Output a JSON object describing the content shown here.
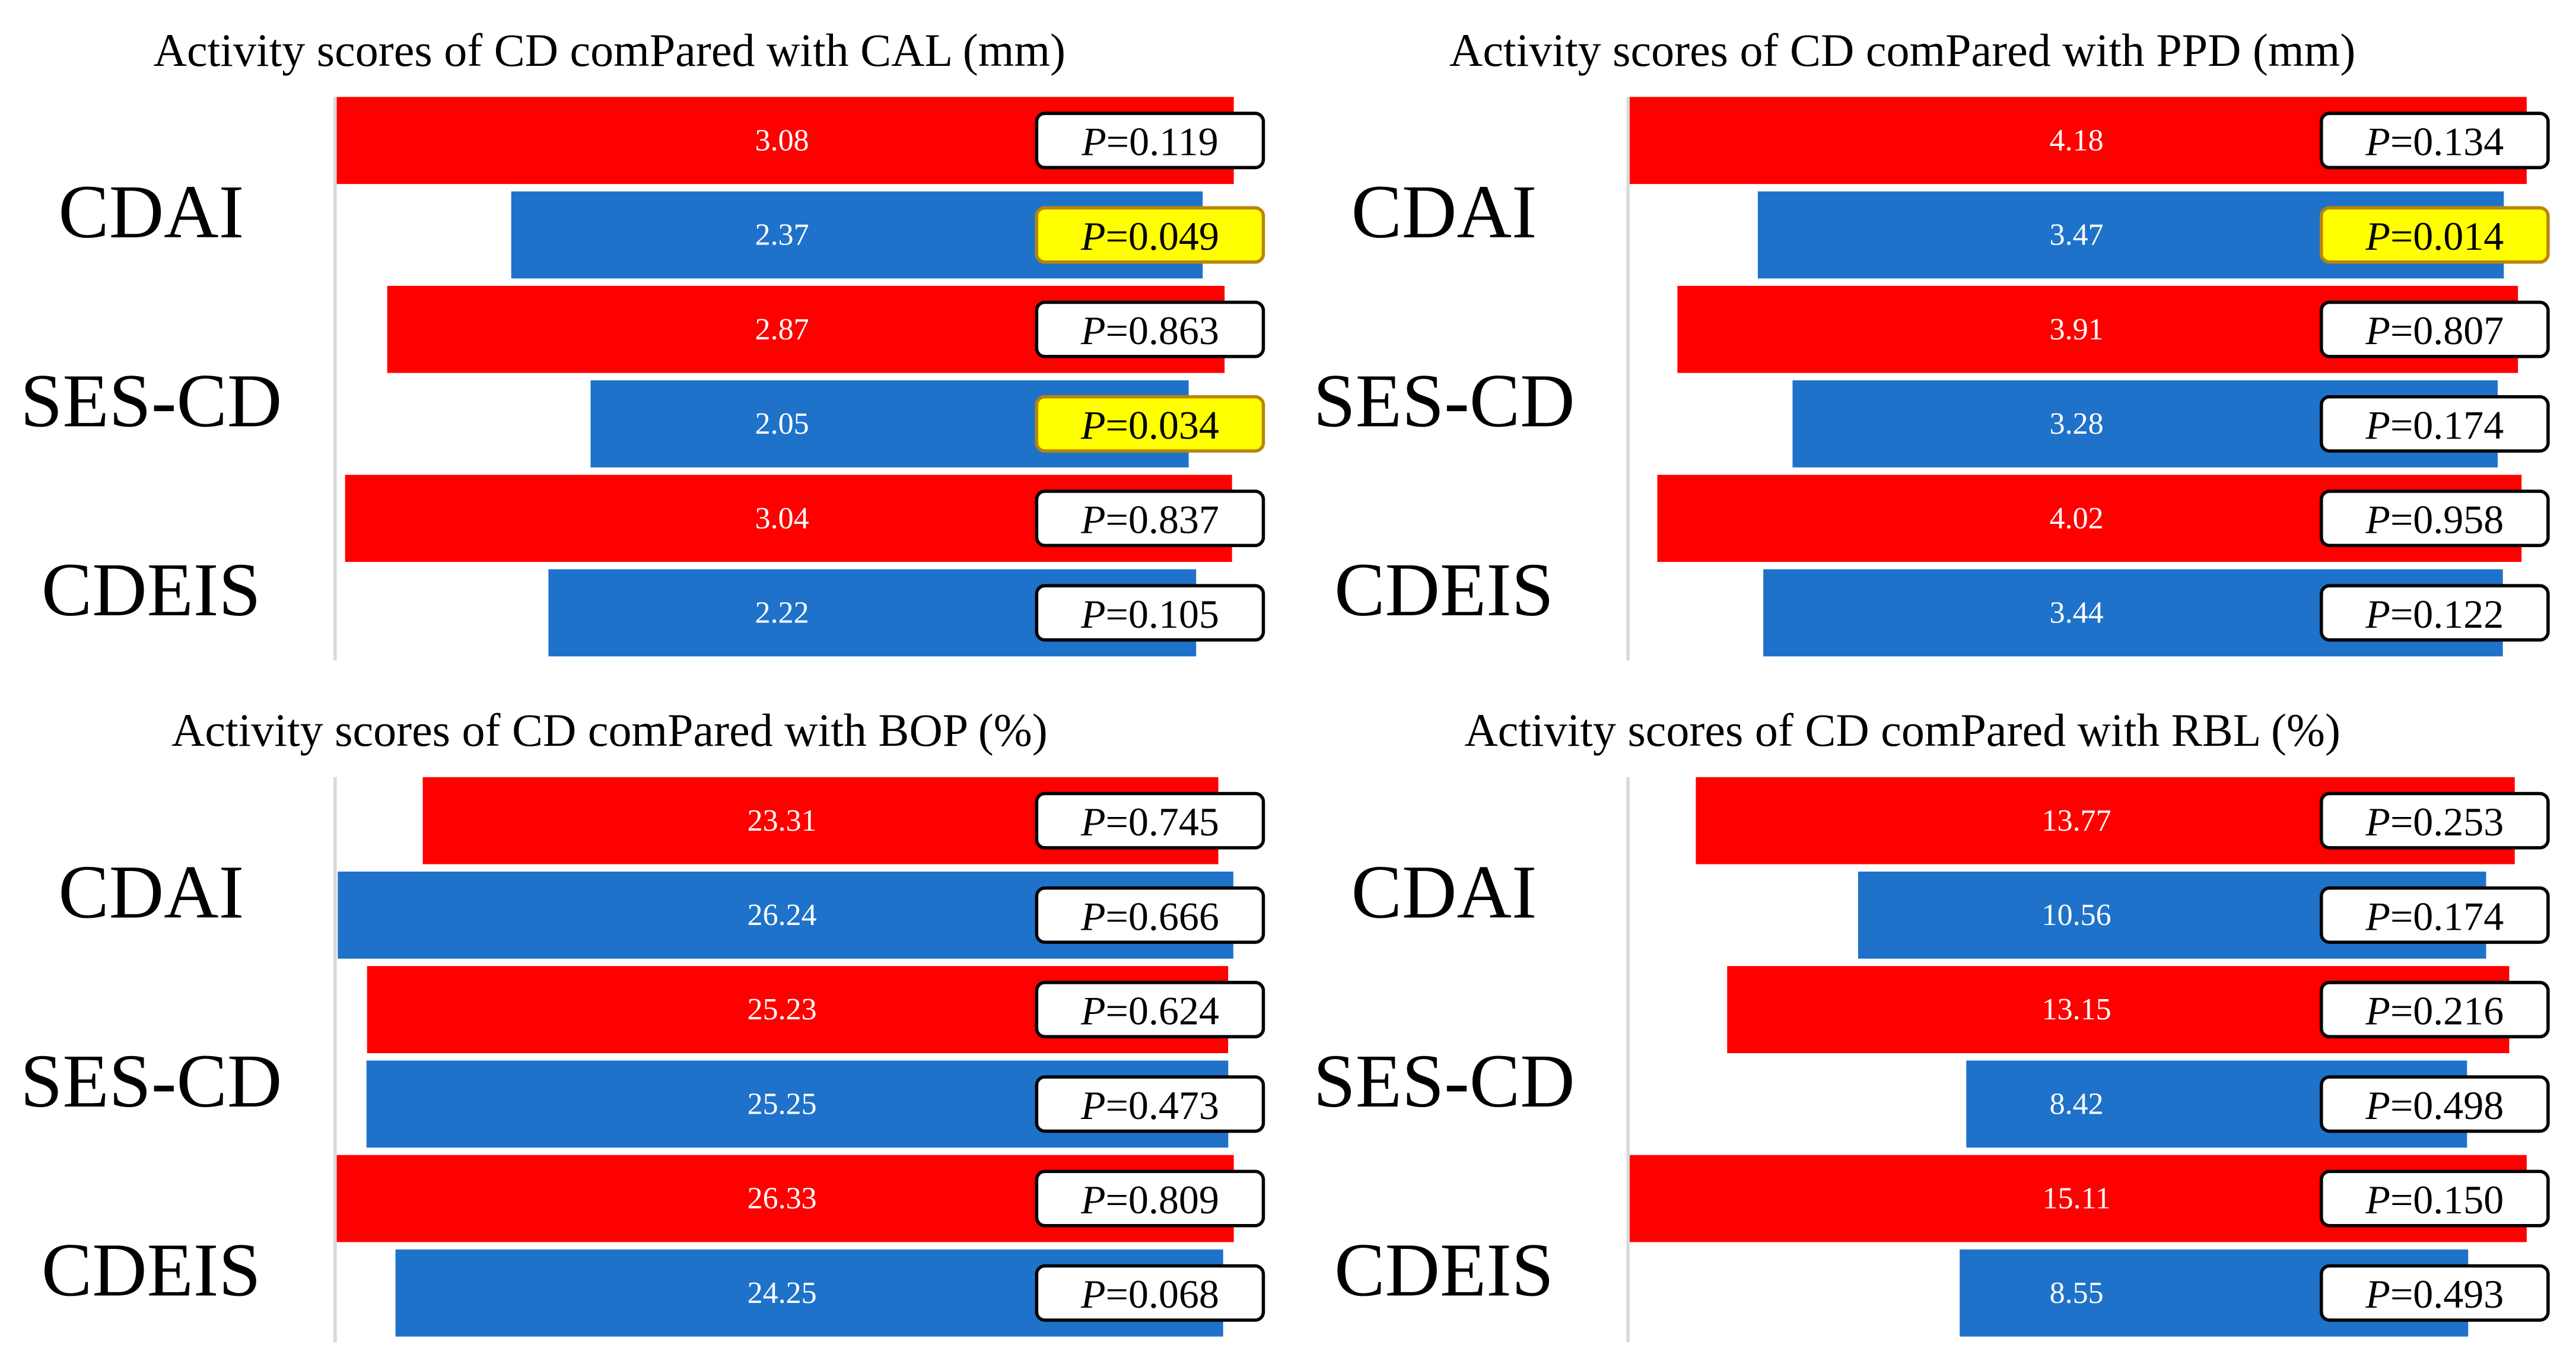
{
  "colors": {
    "red_bar": "#ff0000",
    "blue_bar": "#1f72c9",
    "highlight": "#ffff00",
    "highlight_border": "#b8860b",
    "box_border": "#000000",
    "axis": "#d9d9d9"
  },
  "chart_data": [
    {
      "type": "bar",
      "orientation": "horizontal",
      "title": "Activity scores of CD comPared with CAL (mm)",
      "groups": [
        "CDAI",
        "SES-CD",
        "CDEIS"
      ],
      "p_prefix": "P",
      "bars": [
        {
          "group": "CDAI",
          "color": "red",
          "value": 3.08,
          "label": "3.08",
          "p_value": "=0.119",
          "significant": false
        },
        {
          "group": "CDAI",
          "color": "blue",
          "value": 2.37,
          "label": "2.37",
          "p_value": "=0.049",
          "significant": true
        },
        {
          "group": "SES-CD",
          "color": "red",
          "value": 2.87,
          "label": "2.87",
          "p_value": "=0.863",
          "significant": false
        },
        {
          "group": "SES-CD",
          "color": "blue",
          "value": 2.05,
          "label": "2.05",
          "p_value": "=0.034",
          "significant": true
        },
        {
          "group": "CDEIS",
          "color": "red",
          "value": 3.04,
          "label": "3.04",
          "p_value": "=0.837",
          "significant": false
        },
        {
          "group": "CDEIS",
          "color": "blue",
          "value": 2.22,
          "label": "2.22",
          "p_value": "=0.105",
          "significant": false
        }
      ]
    },
    {
      "type": "bar",
      "orientation": "horizontal",
      "title": "Activity scores of CD comPared with PPD (mm)",
      "groups": [
        "CDAI",
        "SES-CD",
        "CDEIS"
      ],
      "p_prefix": "P",
      "bars": [
        {
          "group": "CDAI",
          "color": "red",
          "value": 4.18,
          "label": "4.18",
          "p_value": "=0.134",
          "significant": false
        },
        {
          "group": "CDAI",
          "color": "blue",
          "value": 3.47,
          "label": "3.47",
          "p_value": "=0.014",
          "significant": true
        },
        {
          "group": "SES-CD",
          "color": "red",
          "value": 3.91,
          "label": "3.91",
          "p_value": "=0.807",
          "significant": false
        },
        {
          "group": "SES-CD",
          "color": "blue",
          "value": 3.28,
          "label": "3.28",
          "p_value": "=0.174",
          "significant": false
        },
        {
          "group": "CDEIS",
          "color": "red",
          "value": 4.02,
          "label": "4.02",
          "p_value": "=0.958",
          "significant": false
        },
        {
          "group": "CDEIS",
          "color": "blue",
          "value": 3.44,
          "label": "3.44",
          "p_value": "=0.122",
          "significant": false
        }
      ]
    },
    {
      "type": "bar",
      "orientation": "horizontal",
      "title": "Activity scores of CD comPared with BOP (%)",
      "groups": [
        "CDAI",
        "SES-CD",
        "CDEIS"
      ],
      "p_prefix": "P",
      "bars": [
        {
          "group": "CDAI",
          "color": "red",
          "value": 23.31,
          "label": "23.31",
          "p_value": "=0.745",
          "significant": false
        },
        {
          "group": "CDAI",
          "color": "blue",
          "value": 26.24,
          "label": "26.24",
          "p_value": "=0.666",
          "significant": false
        },
        {
          "group": "SES-CD",
          "color": "red",
          "value": 25.23,
          "label": "25.23",
          "p_value": "=0.624",
          "significant": false
        },
        {
          "group": "SES-CD",
          "color": "blue",
          "value": 25.25,
          "label": "25.25",
          "p_value": "=0.473",
          "significant": false
        },
        {
          "group": "CDEIS",
          "color": "red",
          "value": 26.33,
          "label": "26.33",
          "p_value": "=0.809",
          "significant": false
        },
        {
          "group": "CDEIS",
          "color": "blue",
          "value": 24.25,
          "label": "24.25",
          "p_value": "=0.068",
          "significant": false
        }
      ]
    },
    {
      "type": "bar",
      "orientation": "horizontal",
      "title": "Activity scores of CD comPared with RBL (%)",
      "groups": [
        "CDAI",
        "SES-CD",
        "CDEIS"
      ],
      "p_prefix": "P",
      "bars": [
        {
          "group": "CDAI",
          "color": "red",
          "value": 13.77,
          "label": "13.77",
          "p_value": "=0.253",
          "significant": false
        },
        {
          "group": "CDAI",
          "color": "blue",
          "value": 10.56,
          "label": "10.56",
          "p_value": "=0.174",
          "significant": false
        },
        {
          "group": "SES-CD",
          "color": "red",
          "value": 13.15,
          "label": "13.15",
          "p_value": "=0.216",
          "significant": false
        },
        {
          "group": "SES-CD",
          "color": "blue",
          "value": 8.42,
          "label": "8.42",
          "p_value": "=0.498",
          "significant": false
        },
        {
          "group": "CDEIS",
          "color": "red",
          "value": 15.11,
          "label": "15.11",
          "p_value": "=0.150",
          "significant": false
        },
        {
          "group": "CDEIS",
          "color": "blue",
          "value": 8.55,
          "label": "8.55",
          "p_value": "=0.493",
          "significant": false
        }
      ]
    }
  ]
}
